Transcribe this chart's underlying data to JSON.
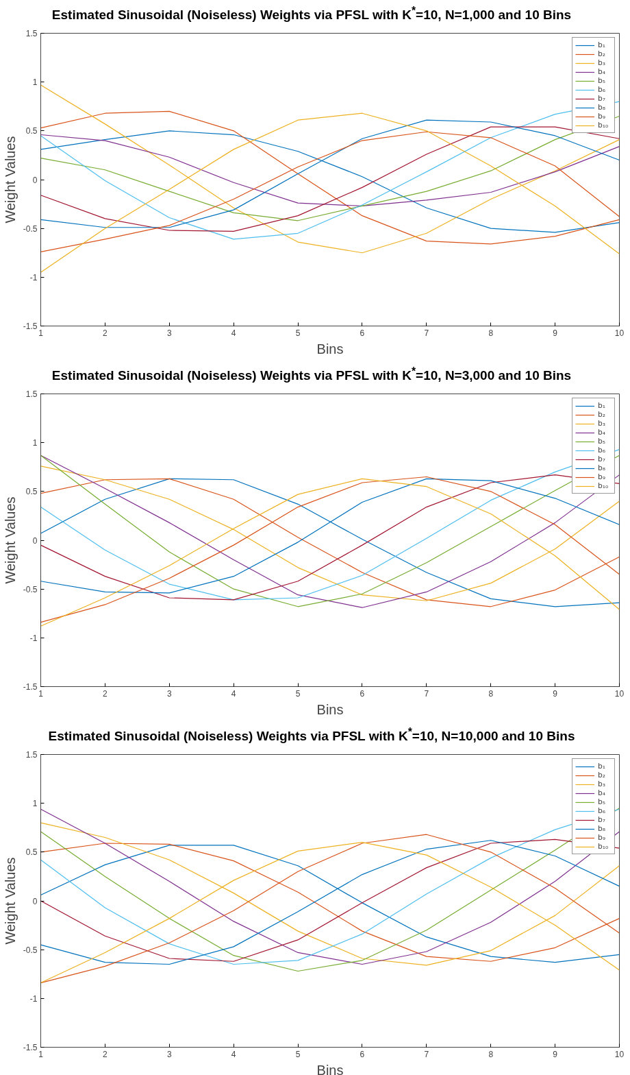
{
  "chart_data": [
    {
      "type": "line",
      "title": "Estimated Sinusoidal (Noiseless) Weights via PFSL with K$^{*}$=10, N=1,000 and 10 Bins",
      "xlabel": "Bins",
      "ylabel": "Weight Values",
      "x": [
        1,
        2,
        3,
        4,
        5,
        6,
        7,
        8,
        9,
        10
      ],
      "xlim": [
        1,
        10
      ],
      "ylim": [
        -1.5,
        1.5
      ],
      "xticks": [
        1,
        2,
        3,
        4,
        5,
        6,
        7,
        8,
        9,
        10
      ],
      "yticks": [
        -1.5,
        -1,
        -0.5,
        0,
        0.5,
        1,
        1.5
      ],
      "legend": "top right",
      "series": [
        {
          "name": "b₁",
          "color": "#0072bd",
          "values": [
            0.31,
            0.41,
            0.5,
            0.46,
            0.29,
            0.03,
            -0.29,
            -0.5,
            -0.54,
            -0.44
          ]
        },
        {
          "name": "b₂",
          "color": "#d95319",
          "values": [
            0.53,
            0.68,
            0.7,
            0.5,
            0.06,
            -0.37,
            -0.63,
            -0.66,
            -0.58,
            -0.41
          ]
        },
        {
          "name": "b₃",
          "color": "#edb120",
          "values": [
            0.97,
            0.57,
            0.15,
            -0.29,
            -0.64,
            -0.75,
            -0.55,
            -0.2,
            0.09,
            0.41
          ]
        },
        {
          "name": "b₄",
          "color": "#7e2f8e",
          "values": [
            0.46,
            0.4,
            0.23,
            -0.03,
            -0.24,
            -0.27,
            -0.21,
            -0.13,
            0.08,
            0.34
          ]
        },
        {
          "name": "b₅",
          "color": "#77ac30",
          "values": [
            0.22,
            0.1,
            -0.12,
            -0.34,
            -0.42,
            -0.27,
            -0.12,
            0.09,
            0.41,
            0.65
          ]
        },
        {
          "name": "b₆",
          "color": "#4dbeee",
          "values": [
            0.45,
            -0.01,
            -0.39,
            -0.61,
            -0.55,
            -0.26,
            0.08,
            0.43,
            0.67,
            0.8
          ]
        },
        {
          "name": "b₇",
          "color": "#a2142f",
          "values": [
            -0.16,
            -0.4,
            -0.52,
            -0.53,
            -0.37,
            -0.08,
            0.26,
            0.54,
            0.54,
            0.42
          ]
        },
        {
          "name": "b₈",
          "color": "#0072bd",
          "values": [
            -0.41,
            -0.49,
            -0.49,
            -0.31,
            0.06,
            0.42,
            0.61,
            0.59,
            0.45,
            0.2
          ]
        },
        {
          "name": "b₉",
          "color": "#d95319",
          "values": [
            -0.74,
            -0.61,
            -0.47,
            -0.2,
            0.13,
            0.4,
            0.49,
            0.43,
            0.14,
            -0.38
          ]
        },
        {
          "name": "b₁₀",
          "color": "#edb120",
          "values": [
            -0.95,
            -0.5,
            -0.1,
            0.31,
            0.61,
            0.68,
            0.5,
            0.14,
            -0.27,
            -0.76
          ]
        }
      ]
    },
    {
      "type": "line",
      "title": "Estimated Sinusoidal (Noiseless) Weights via PFSL with K$^{*}$=10, N=3,000 and 10 Bins",
      "xlabel": "Bins",
      "ylabel": "Weight Values",
      "x": [
        1,
        2,
        3,
        4,
        5,
        6,
        7,
        8,
        9,
        10
      ],
      "xlim": [
        1,
        10
      ],
      "ylim": [
        -1.5,
        1.5
      ],
      "xticks": [
        1,
        2,
        3,
        4,
        5,
        6,
        7,
        8,
        9,
        10
      ],
      "yticks": [
        -1.5,
        -1,
        -0.5,
        0,
        0.5,
        1,
        1.5
      ],
      "legend": "top right",
      "series": [
        {
          "name": "b₁",
          "color": "#0072bd",
          "values": [
            0.07,
            0.42,
            0.63,
            0.62,
            0.37,
            0.01,
            -0.33,
            -0.6,
            -0.68,
            -0.64
          ]
        },
        {
          "name": "b₂",
          "color": "#d95319",
          "values": [
            0.48,
            0.62,
            0.63,
            0.42,
            0.03,
            -0.33,
            -0.61,
            -0.68,
            -0.51,
            -0.17
          ]
        },
        {
          "name": "b₃",
          "color": "#edb120",
          "values": [
            0.76,
            0.62,
            0.42,
            0.11,
            -0.28,
            -0.56,
            -0.62,
            -0.44,
            -0.09,
            0.4
          ]
        },
        {
          "name": "b₄",
          "color": "#7e2f8e",
          "values": [
            0.87,
            0.53,
            0.18,
            -0.2,
            -0.56,
            -0.69,
            -0.53,
            -0.22,
            0.18,
            0.67
          ]
        },
        {
          "name": "b₅",
          "color": "#77ac30",
          "values": [
            0.87,
            0.37,
            -0.12,
            -0.5,
            -0.68,
            -0.55,
            -0.23,
            0.14,
            0.51,
            0.87
          ]
        },
        {
          "name": "b₆",
          "color": "#4dbeee",
          "values": [
            0.34,
            -0.1,
            -0.45,
            -0.61,
            -0.59,
            -0.36,
            0.02,
            0.41,
            0.7,
            0.93
          ]
        },
        {
          "name": "b₇",
          "color": "#a2142f",
          "values": [
            -0.05,
            -0.37,
            -0.59,
            -0.61,
            -0.42,
            -0.05,
            0.34,
            0.59,
            0.67,
            0.58
          ]
        },
        {
          "name": "b₈",
          "color": "#0072bd",
          "values": [
            -0.42,
            -0.53,
            -0.54,
            -0.37,
            -0.02,
            0.39,
            0.63,
            0.61,
            0.43,
            0.16
          ]
        },
        {
          "name": "b₉",
          "color": "#d95319",
          "values": [
            -0.84,
            -0.66,
            -0.39,
            -0.05,
            0.34,
            0.59,
            0.65,
            0.5,
            0.16,
            -0.35
          ]
        },
        {
          "name": "b₁₀",
          "color": "#edb120",
          "values": [
            -0.88,
            -0.59,
            -0.26,
            0.12,
            0.47,
            0.63,
            0.55,
            0.27,
            -0.16,
            -0.71
          ]
        }
      ]
    },
    {
      "type": "line",
      "title": "Estimated Sinusoidal (Noiseless) Weights via PFSL with K$^{*}$=10, N=10,000 and 10 Bins",
      "xlabel": "Bins",
      "ylabel": "Weight Values",
      "x": [
        1,
        2,
        3,
        4,
        5,
        6,
        7,
        8,
        9,
        10
      ],
      "xlim": [
        1,
        10
      ],
      "ylim": [
        -1.5,
        1.5
      ],
      "xticks": [
        1,
        2,
        3,
        4,
        5,
        6,
        7,
        8,
        9,
        10
      ],
      "yticks": [
        -1.5,
        -1,
        -0.5,
        0,
        0.5,
        1,
        1.5
      ],
      "legend": "top right",
      "series": [
        {
          "name": "b₁",
          "color": "#0072bd",
          "values": [
            0.06,
            0.37,
            0.57,
            0.57,
            0.36,
            -0.02,
            -0.37,
            -0.57,
            -0.63,
            -0.55
          ]
        },
        {
          "name": "b₂",
          "color": "#d95319",
          "values": [
            0.5,
            0.59,
            0.58,
            0.41,
            0.09,
            -0.31,
            -0.57,
            -0.62,
            -0.48,
            -0.18
          ]
        },
        {
          "name": "b₃",
          "color": "#edb120",
          "values": [
            0.8,
            0.65,
            0.42,
            0.08,
            -0.31,
            -0.59,
            -0.66,
            -0.51,
            -0.15,
            0.36
          ]
        },
        {
          "name": "b₄",
          "color": "#7e2f8e",
          "values": [
            0.94,
            0.59,
            0.2,
            -0.21,
            -0.53,
            -0.65,
            -0.52,
            -0.22,
            0.2,
            0.71
          ]
        },
        {
          "name": "b₅",
          "color": "#77ac30",
          "values": [
            0.71,
            0.25,
            -0.18,
            -0.56,
            -0.72,
            -0.61,
            -0.3,
            0.11,
            0.52,
            0.95
          ]
        },
        {
          "name": "b₆",
          "color": "#4dbeee",
          "values": [
            0.42,
            -0.07,
            -0.44,
            -0.65,
            -0.61,
            -0.34,
            0.07,
            0.44,
            0.73,
            0.94
          ]
        },
        {
          "name": "b₇",
          "color": "#a2142f",
          "values": [
            0.0,
            -0.36,
            -0.59,
            -0.62,
            -0.4,
            -0.02,
            0.34,
            0.59,
            0.63,
            0.54
          ]
        },
        {
          "name": "b₈",
          "color": "#0072bd",
          "values": [
            -0.45,
            -0.63,
            -0.65,
            -0.47,
            -0.11,
            0.27,
            0.53,
            0.62,
            0.46,
            0.15
          ]
        },
        {
          "name": "b₉",
          "color": "#d95319",
          "values": [
            -0.84,
            -0.67,
            -0.43,
            -0.1,
            0.3,
            0.59,
            0.68,
            0.5,
            0.13,
            -0.33
          ]
        },
        {
          "name": "b₁₀",
          "color": "#edb120",
          "values": [
            -0.84,
            -0.53,
            -0.18,
            0.21,
            0.51,
            0.6,
            0.47,
            0.14,
            -0.25,
            -0.71
          ]
        }
      ]
    }
  ]
}
